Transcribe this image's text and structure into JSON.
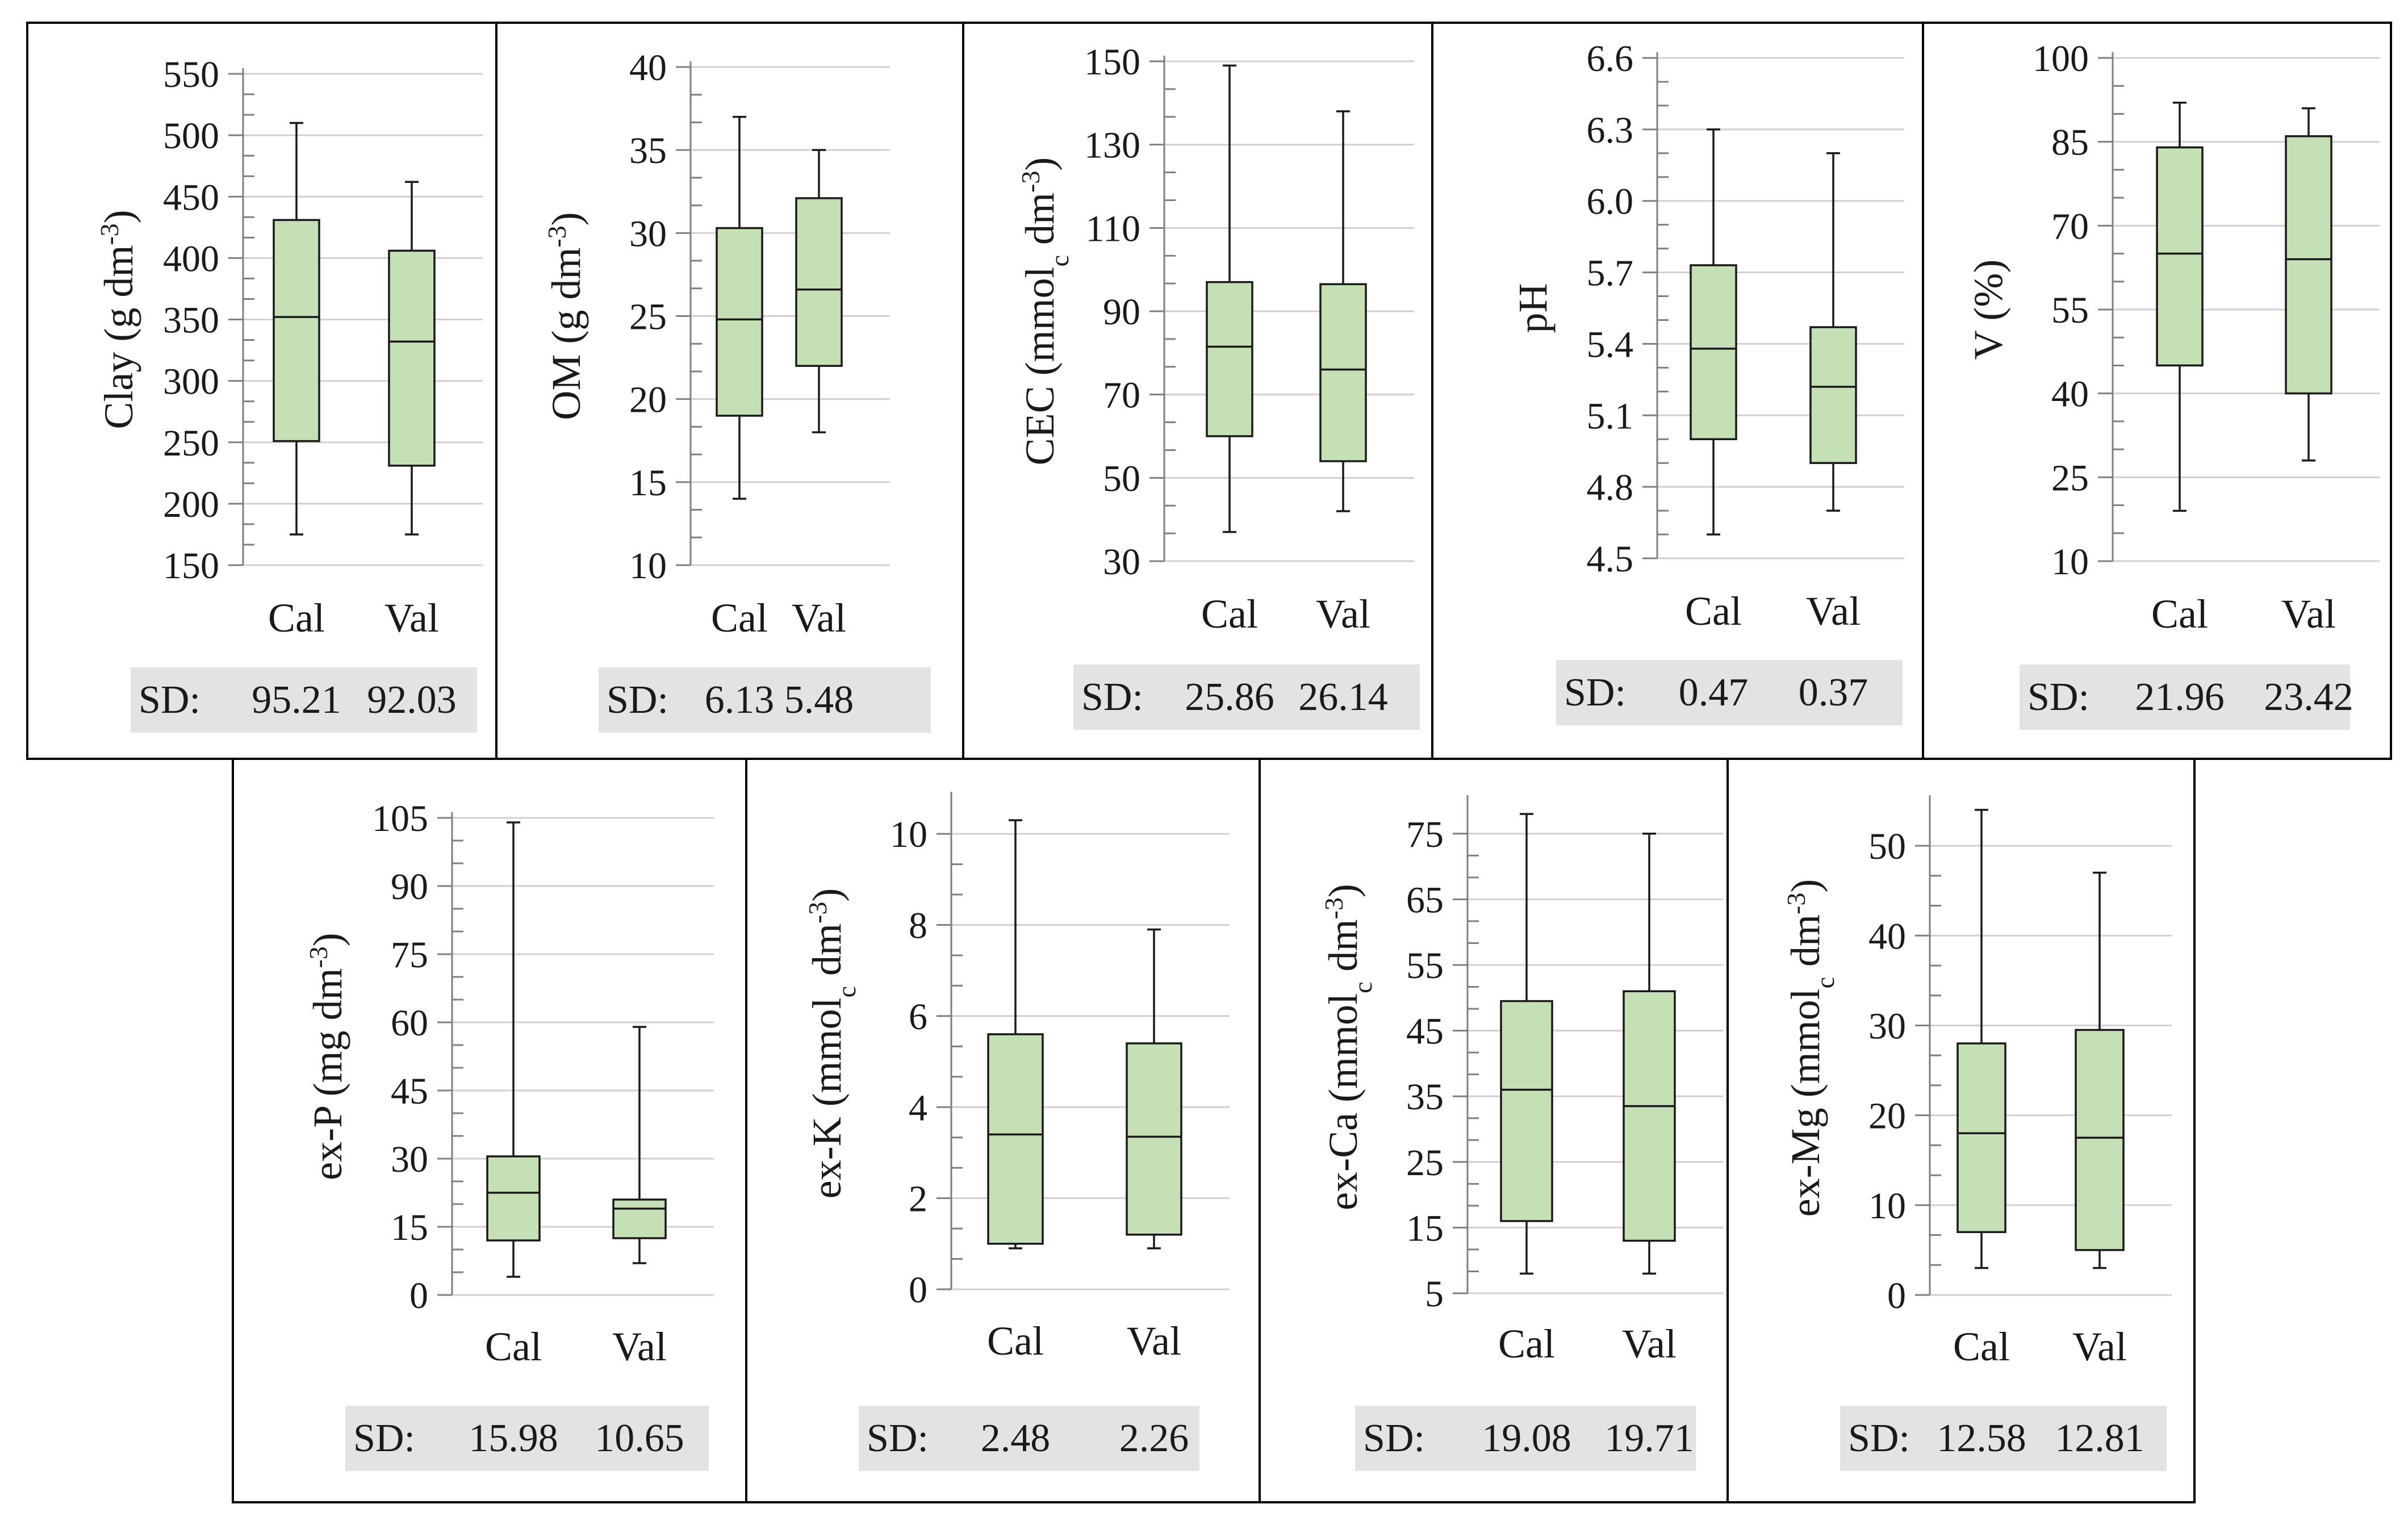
{
  "chart_data": [
    {
      "type": "boxplot",
      "ylabel": "Clay (g dm-3)",
      "ylabel_parts": {
        "main": "Clay (g dm",
        "sup": "-3",
        "sub": "",
        "end": ")"
      },
      "categories": [
        "Cal",
        "Val"
      ],
      "ylim": [
        150,
        550
      ],
      "yticks": [
        150,
        200,
        250,
        300,
        350,
        400,
        450,
        500,
        550
      ],
      "boxes": [
        {
          "name": "Cal",
          "min": 175,
          "q1": 251,
          "median": 352,
          "q3": 431,
          "max": 510
        },
        {
          "name": "Val",
          "min": 175,
          "q1": 231,
          "median": 332,
          "q3": 406,
          "max": 462
        }
      ],
      "sd_label": "SD:",
      "sd": [
        "95.21",
        "92.03"
      ]
    },
    {
      "type": "boxplot",
      "ylabel": "OM (g dm-3)",
      "ylabel_parts": {
        "main": "OM (g dm",
        "sup": "-3",
        "sub": "",
        "end": ")"
      },
      "categories": [
        "Cal",
        "Val"
      ],
      "ylim": [
        10,
        40
      ],
      "yticks": [
        10,
        15,
        20,
        25,
        30,
        35,
        40
      ],
      "boxes": [
        {
          "name": "Cal",
          "min": 14,
          "q1": 19,
          "median": 24.8,
          "q3": 30.3,
          "max": 37
        },
        {
          "name": "Val",
          "min": 18,
          "q1": 22,
          "median": 26.6,
          "q3": 32.1,
          "max": 35
        }
      ],
      "sd_label": "SD:",
      "sd": [
        "6.13",
        "5.48"
      ]
    },
    {
      "type": "boxplot",
      "ylabel": "CEC (mmolc dm-3)",
      "ylabel_parts": {
        "main": "CEC (mmol",
        "sub": "c",
        "mid": " dm",
        "sup": "-3",
        "end": ")"
      },
      "categories": [
        "Cal",
        "Val"
      ],
      "ylim": [
        30,
        150
      ],
      "yticks": [
        30,
        50,
        70,
        90,
        110,
        130,
        150
      ],
      "boxes": [
        {
          "name": "Cal",
          "min": 37,
          "q1": 60,
          "median": 81.5,
          "q3": 97,
          "max": 149
        },
        {
          "name": "Val",
          "min": 42,
          "q1": 54,
          "median": 76,
          "q3": 96.5,
          "max": 138
        }
      ],
      "sd_label": "SD:",
      "sd": [
        "25.86",
        "26.14"
      ]
    },
    {
      "type": "boxplot",
      "ylabel": "pH",
      "ylabel_parts": {
        "main": "pH",
        "sup": "",
        "sub": "",
        "end": ""
      },
      "categories": [
        "Cal",
        "Val"
      ],
      "ylim": [
        4.5,
        6.6
      ],
      "yticks": [
        "4.5",
        "4.8",
        "5.1",
        "5.4",
        "5.7",
        "6.0",
        "6.3",
        "6.6"
      ],
      "boxes": [
        {
          "name": "Cal",
          "min": 4.6,
          "q1": 5.0,
          "median": 5.38,
          "q3": 5.73,
          "max": 6.3
        },
        {
          "name": "Val",
          "min": 4.7,
          "q1": 4.9,
          "median": 5.22,
          "q3": 5.47,
          "max": 6.2
        }
      ],
      "sd_label": "SD:",
      "sd": [
        "0.47",
        "0.37"
      ]
    },
    {
      "type": "boxplot",
      "ylabel": "V (%)",
      "ylabel_parts": {
        "main": "V (%)",
        "sup": "",
        "sub": "",
        "end": ""
      },
      "categories": [
        "Cal",
        "Val"
      ],
      "ylim": [
        10,
        100
      ],
      "yticks": [
        10,
        25,
        40,
        55,
        70,
        85,
        100
      ],
      "boxes": [
        {
          "name": "Cal",
          "min": 19,
          "q1": 45,
          "median": 65,
          "q3": 84,
          "max": 92
        },
        {
          "name": "Val",
          "min": 28,
          "q1": 40,
          "median": 64,
          "q3": 86,
          "max": 91
        }
      ],
      "sd_label": "SD:",
      "sd": [
        "21.96",
        "23.42"
      ]
    },
    {
      "type": "boxplot",
      "ylabel": "ex-P (mg dm-3)",
      "ylabel_parts": {
        "main": "ex-P (mg dm",
        "sup": "-3",
        "sub": "",
        "end": ")"
      },
      "categories": [
        "Cal",
        "Val"
      ],
      "ylim": [
        0,
        105
      ],
      "yticks": [
        0,
        15,
        30,
        45,
        60,
        75,
        90,
        105
      ],
      "boxes": [
        {
          "name": "Cal",
          "min": 4,
          "q1": 12,
          "median": 22.5,
          "q3": 30.5,
          "max": 104
        },
        {
          "name": "Val",
          "min": 7,
          "q1": 12.5,
          "median": 19,
          "q3": 21,
          "max": 59
        }
      ],
      "sd_label": "SD:",
      "sd": [
        "15.98",
        "10.65"
      ]
    },
    {
      "type": "boxplot",
      "ylabel": "ex-K (mmolc dm-3)",
      "ylabel_parts": {
        "main": "ex-K (mmol",
        "sub": "c",
        "mid": " dm",
        "sup": "-3",
        "end": ")"
      },
      "categories": [
        "Cal",
        "Val"
      ],
      "ylim": [
        0,
        10.8
      ],
      "yticks": [
        0,
        2,
        4,
        6,
        8,
        10
      ],
      "boxes": [
        {
          "name": "Cal",
          "min": 0.9,
          "q1": 1.0,
          "median": 3.4,
          "q3": 5.6,
          "max": 10.3
        },
        {
          "name": "Val",
          "min": 0.9,
          "q1": 1.2,
          "median": 3.35,
          "q3": 5.4,
          "max": 7.9
        }
      ],
      "sd_label": "SD:",
      "sd": [
        "2.48",
        "2.26"
      ]
    },
    {
      "type": "boxplot",
      "ylabel": "ex-Ca (mmolc dm-3)",
      "ylabel_parts": {
        "main": "ex-Ca (mmol",
        "sub": "c",
        "mid": " dm",
        "sup": "-3",
        "end": ")"
      },
      "categories": [
        "Cal",
        "Val"
      ],
      "ylim": [
        5,
        80
      ],
      "yticks": [
        5,
        15,
        25,
        35,
        45,
        55,
        65,
        75
      ],
      "boxes": [
        {
          "name": "Cal",
          "min": 8,
          "q1": 16,
          "median": 36,
          "q3": 49.5,
          "max": 78
        },
        {
          "name": "Val",
          "min": 8,
          "q1": 13,
          "median": 33.5,
          "q3": 51,
          "max": 75
        }
      ],
      "sd_label": "SD:",
      "sd": [
        "19.08",
        "19.71"
      ]
    },
    {
      "type": "boxplot",
      "ylabel": "ex-Mg (mmolc dm-3)",
      "ylabel_parts": {
        "main": "ex-Mg (mmol",
        "sub": "c",
        "mid": " dm",
        "sup": "-3",
        "end": ")"
      },
      "categories": [
        "Cal",
        "Val"
      ],
      "ylim": [
        0,
        55
      ],
      "yticks": [
        0,
        10,
        20,
        30,
        40,
        50
      ],
      "boxes": [
        {
          "name": "Cal",
          "min": 3,
          "q1": 7,
          "median": 18,
          "q3": 28,
          "max": 54
        },
        {
          "name": "Val",
          "min": 3,
          "q1": 5,
          "median": 17.5,
          "q3": 29.5,
          "max": 47
        }
      ],
      "sd_label": "SD:",
      "sd": [
        "12.58",
        "12.81"
      ]
    }
  ],
  "colors": {
    "box_fill": "#c5e0b4",
    "stroke": "#1a1a1a",
    "grid": "#d0d0d0",
    "sd_background": "#e3e3e3",
    "frame": "#000000"
  }
}
